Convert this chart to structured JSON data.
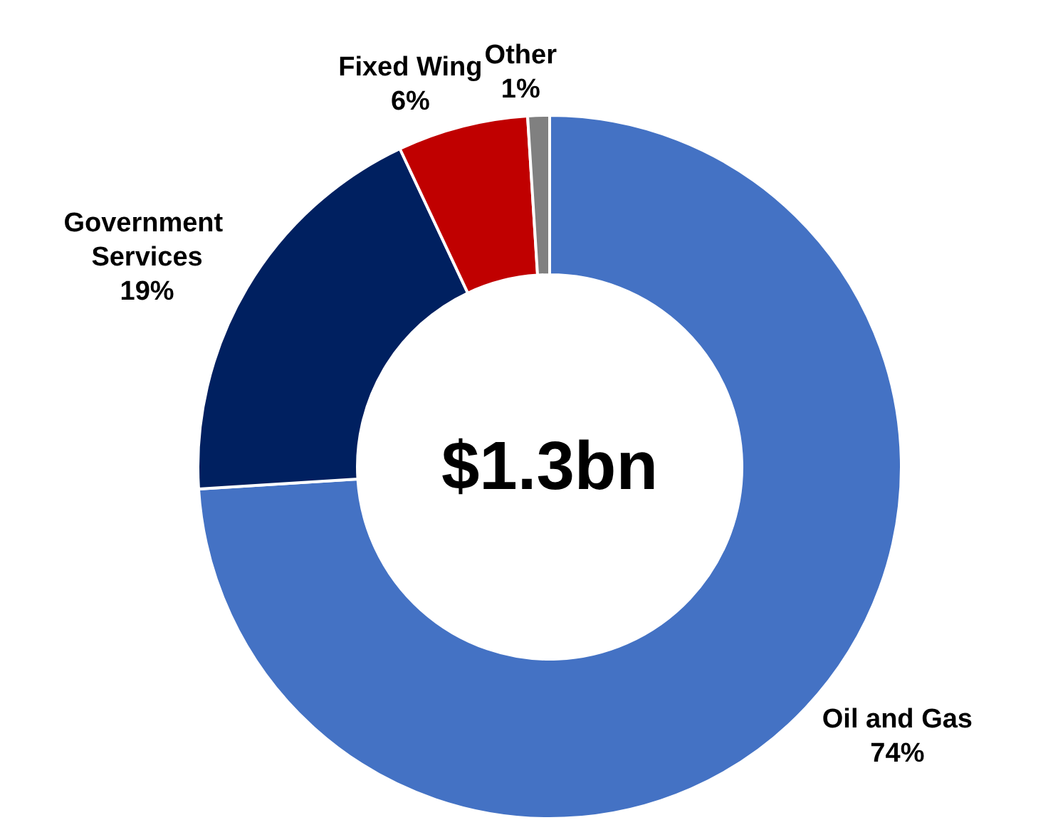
{
  "chart_data": {
    "type": "donut",
    "categories": [
      "Oil and Gas",
      "Government Services",
      "Fixed Wing",
      "Other"
    ],
    "values": [
      74,
      19,
      6,
      1
    ],
    "colors": [
      "#4472c4",
      "#002060",
      "#c00000",
      "#808080"
    ],
    "annotations": [
      "$1.3bn"
    ],
    "value_labels": [
      "74%",
      "19%",
      "6%",
      "1%"
    ],
    "legend": false
  }
}
